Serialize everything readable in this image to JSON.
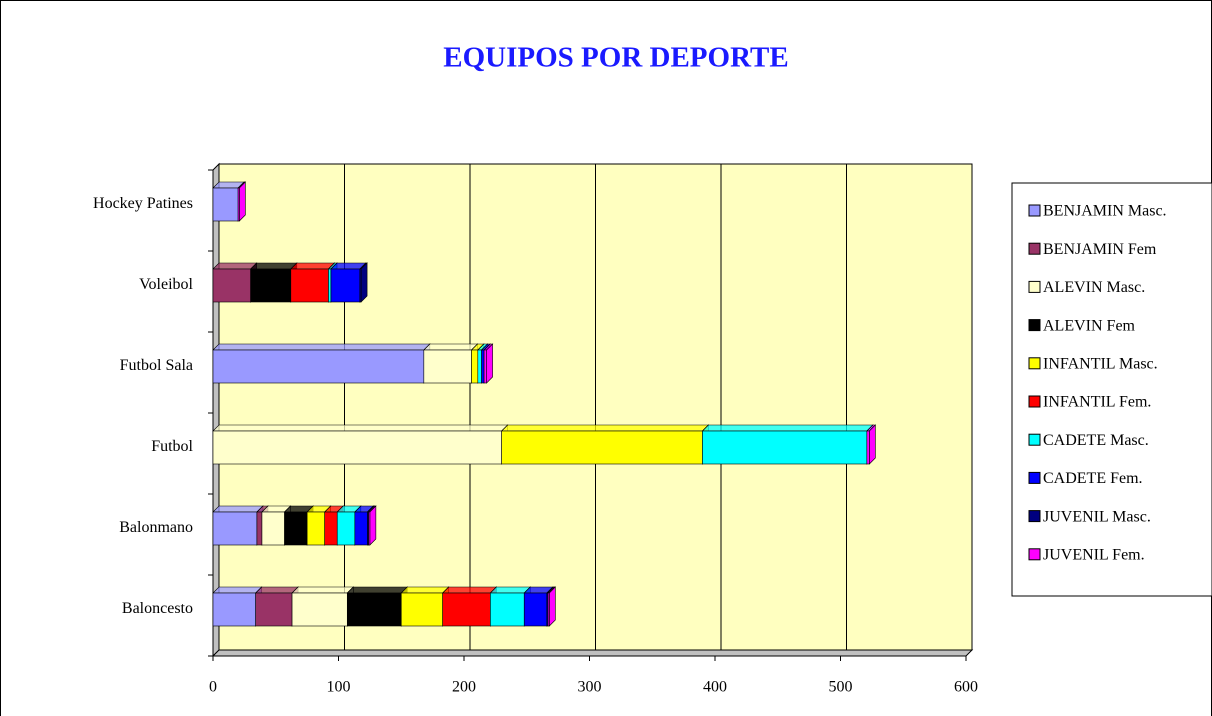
{
  "chart_data": {
    "type": "stacked-bar-horizontal",
    "title": "EQUIPOS POR DEPORTE",
    "categories": [
      "Baloncesto",
      "Balonmano",
      "Futbol",
      "Futbol Sala",
      "Voleibol",
      "Hockey Patines"
    ],
    "series": [
      {
        "name": "BENJAMIN Masc.",
        "color": "#9999ff",
        "values": [
          34,
          35,
          0,
          168,
          0,
          20
        ]
      },
      {
        "name": "BENJAMIN Fem",
        "color": "#993366",
        "values": [
          29,
          4,
          0,
          0,
          30,
          0
        ]
      },
      {
        "name": "ALEVIN Masc.",
        "color": "#ffffcc",
        "values": [
          44,
          18,
          230,
          38,
          0,
          0
        ]
      },
      {
        "name": "ALEVIN Fem",
        "color": "#000000",
        "values": [
          43,
          18,
          0,
          0,
          32,
          0
        ]
      },
      {
        "name": "INFANTIL Masc.",
        "color": "#ffff00",
        "values": [
          33,
          14,
          160,
          5,
          0,
          0
        ]
      },
      {
        "name": "INFANTIL Fem.",
        "color": "#ff0000",
        "values": [
          38,
          10,
          0,
          0,
          30,
          0
        ]
      },
      {
        "name": "CADETE Masc.",
        "color": "#00ffff",
        "values": [
          27,
          14,
          131,
          3,
          2,
          0
        ]
      },
      {
        "name": "CADETE Fem.",
        "color": "#0000ff",
        "values": [
          18,
          10,
          0,
          2,
          23,
          0
        ]
      },
      {
        "name": "JUVENIL Masc.",
        "color": "#000080",
        "values": [
          1,
          1,
          0,
          0,
          1,
          0
        ]
      },
      {
        "name": "JUVENIL Fem.",
        "color": "#ff00ff",
        "values": [
          1,
          1,
          2,
          2,
          0,
          1
        ]
      }
    ],
    "xlim": [
      0,
      600
    ],
    "xticks": [
      0,
      100,
      200,
      300,
      400,
      500,
      600
    ],
    "grid": true,
    "legend": "right"
  }
}
